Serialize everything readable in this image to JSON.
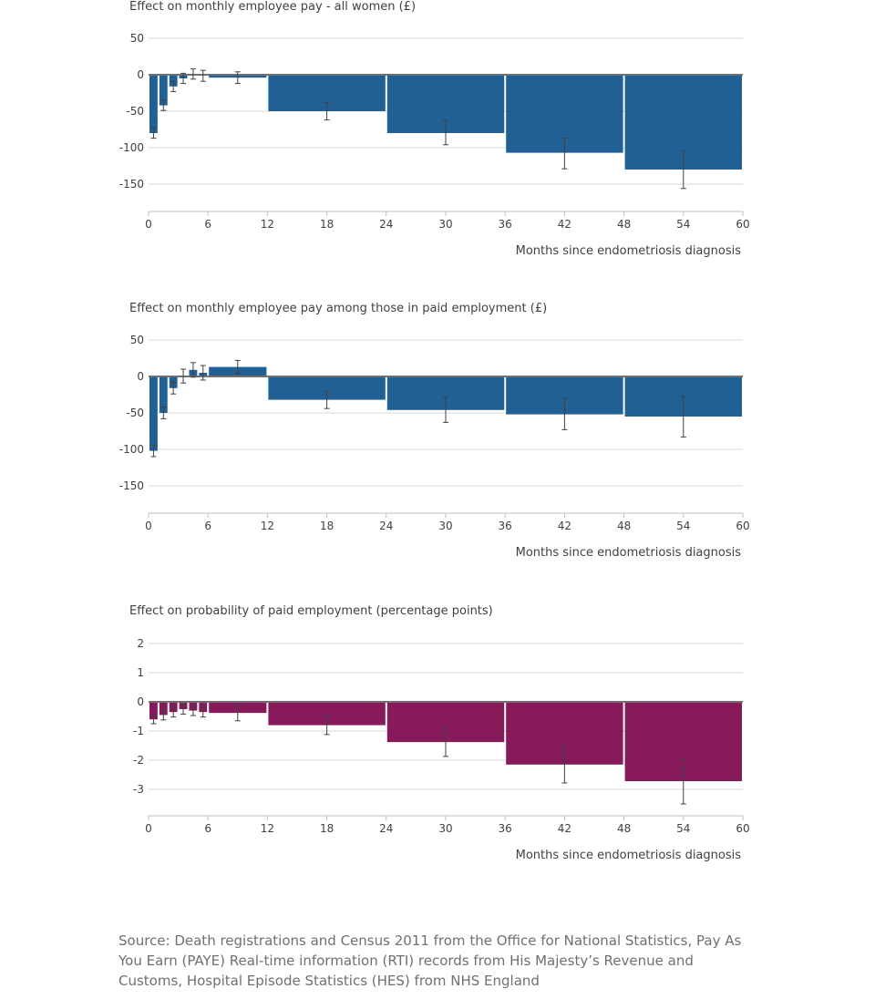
{
  "chart_data": [
    {
      "type": "bar",
      "title": "Effect on monthly employee pay - all women (£)",
      "xlabel": "Months since endometriosis diagnosis",
      "ylabel": "",
      "xlim": [
        0,
        60
      ],
      "ylim": [
        -175,
        50
      ],
      "yticks": [
        50,
        0,
        -50,
        -100,
        -150
      ],
      "xticks": [
        0,
        6,
        12,
        18,
        24,
        30,
        36,
        42,
        48,
        54,
        60
      ],
      "grid": true,
      "color": "#206095",
      "bars": [
        {
          "x0": 0,
          "x1": 1,
          "value": -80,
          "err_low": -87,
          "err_high": -73
        },
        {
          "x0": 1,
          "x1": 2,
          "value": -42,
          "err_low": -49,
          "err_high": -35
        },
        {
          "x0": 2,
          "x1": 3,
          "value": -16,
          "err_low": -23,
          "err_high": -9
        },
        {
          "x0": 3,
          "x1": 4,
          "value": -5,
          "err_low": -12,
          "err_high": 2
        },
        {
          "x0": 4,
          "x1": 5,
          "value": 1,
          "err_low": -6,
          "err_high": 8
        },
        {
          "x0": 5,
          "x1": 6,
          "value": -1,
          "err_low": -9,
          "err_high": 6
        },
        {
          "x0": 6,
          "x1": 12,
          "value": -4,
          "err_low": -12,
          "err_high": 4
        },
        {
          "x0": 12,
          "x1": 24,
          "value": -50,
          "err_low": -62,
          "err_high": -38
        },
        {
          "x0": 24,
          "x1": 36,
          "value": -80,
          "err_low": -96,
          "err_high": -63
        },
        {
          "x0": 36,
          "x1": 48,
          "value": -107,
          "err_low": -129,
          "err_high": -87
        },
        {
          "x0": 48,
          "x1": 60,
          "value": -130,
          "err_low": -156,
          "err_high": -104
        }
      ]
    },
    {
      "type": "bar",
      "title": "Effect on monthly employee pay among those in paid employment (£)",
      "xlabel": "Months since endometriosis diagnosis",
      "ylabel": "",
      "xlim": [
        0,
        60
      ],
      "ylim": [
        -175,
        50
      ],
      "yticks": [
        50,
        0,
        -50,
        -100,
        -150
      ],
      "xticks": [
        0,
        6,
        12,
        18,
        24,
        30,
        36,
        42,
        48,
        54,
        60
      ],
      "grid": true,
      "color": "#206095",
      "bars": [
        {
          "x0": 0,
          "x1": 1,
          "value": -102,
          "err_low": -110,
          "err_high": -94
        },
        {
          "x0": 1,
          "x1": 2,
          "value": -50,
          "err_low": -58,
          "err_high": -42
        },
        {
          "x0": 2,
          "x1": 3,
          "value": -16,
          "err_low": -24,
          "err_high": -8
        },
        {
          "x0": 3,
          "x1": 4,
          "value": 1,
          "err_low": -9,
          "err_high": 10
        },
        {
          "x0": 4,
          "x1": 5,
          "value": 9,
          "err_low": -1,
          "err_high": 19
        },
        {
          "x0": 5,
          "x1": 6,
          "value": 5,
          "err_low": -5,
          "err_high": 15
        },
        {
          "x0": 6,
          "x1": 12,
          "value": 13,
          "err_low": 4,
          "err_high": 22
        },
        {
          "x0": 12,
          "x1": 24,
          "value": -32,
          "err_low": -44,
          "err_high": -20
        },
        {
          "x0": 24,
          "x1": 36,
          "value": -46,
          "err_low": -63,
          "err_high": -28
        },
        {
          "x0": 36,
          "x1": 48,
          "value": -52,
          "err_low": -73,
          "err_high": -30
        },
        {
          "x0": 48,
          "x1": 60,
          "value": -55,
          "err_low": -83,
          "err_high": -28
        }
      ]
    },
    {
      "type": "bar",
      "title": "Effect on probability of paid employment (percentage points)",
      "xlabel": "Months since endometriosis diagnosis",
      "ylabel": "",
      "xlim": [
        0,
        60
      ],
      "ylim": [
        -4,
        2
      ],
      "yticks": [
        2,
        1,
        0,
        -1,
        -2,
        -3
      ],
      "xticks": [
        0,
        6,
        12,
        18,
        24,
        30,
        36,
        42,
        48,
        54,
        60
      ],
      "grid": true,
      "color": "#871A5B",
      "bars": [
        {
          "x0": 0,
          "x1": 1,
          "value": -0.6,
          "err_low": -0.75,
          "err_high": -0.45
        },
        {
          "x0": 1,
          "x1": 2,
          "value": -0.45,
          "err_low": -0.62,
          "err_high": -0.28
        },
        {
          "x0": 2,
          "x1": 3,
          "value": -0.35,
          "err_low": -0.52,
          "err_high": -0.18
        },
        {
          "x0": 3,
          "x1": 4,
          "value": -0.25,
          "err_low": -0.42,
          "err_high": -0.08
        },
        {
          "x0": 4,
          "x1": 5,
          "value": -0.3,
          "err_low": -0.47,
          "err_high": -0.13
        },
        {
          "x0": 5,
          "x1": 6,
          "value": -0.35,
          "err_low": -0.52,
          "err_high": -0.18
        },
        {
          "x0": 6,
          "x1": 12,
          "value": -0.38,
          "err_low": -0.65,
          "err_high": -0.11
        },
        {
          "x0": 12,
          "x1": 24,
          "value": -0.8,
          "err_low": -1.12,
          "err_high": -0.48
        },
        {
          "x0": 24,
          "x1": 36,
          "value": -1.38,
          "err_low": -1.87,
          "err_high": -0.88
        },
        {
          "x0": 36,
          "x1": 48,
          "value": -2.15,
          "err_low": -2.78,
          "err_high": -1.52
        },
        {
          "x0": 48,
          "x1": 60,
          "value": -2.72,
          "err_low": -3.5,
          "err_high": -1.95
        }
      ]
    }
  ],
  "source": "Source: Death registrations and Census 2011 from the Office for National Statistics, Pay As You Earn (PAYE) Real-time information (RTI) records from His Majesty’s Revenue and Customs, Hospital Episode Statistics (HES) from NHS England"
}
